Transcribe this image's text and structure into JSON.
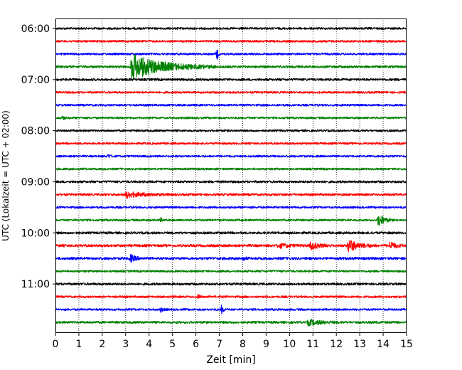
{
  "chart_data": {
    "type": "line",
    "title": "",
    "xlabel": "Zeit  [min]",
    "ylabel": "UTC (Lokalzeit = UTC + 02:00)",
    "xlim": [
      0,
      15
    ],
    "xticks": [
      0,
      1,
      2,
      3,
      4,
      5,
      6,
      7,
      8,
      9,
      10,
      11,
      12,
      13,
      14,
      15
    ],
    "ytick_labels": [
      "06:00",
      "07:00",
      "08:00",
      "09:00",
      "10:00",
      "11:00"
    ],
    "grid": "vertical dotted",
    "trace_interval_min": 15,
    "color_cycle": [
      "#000000",
      "#ff0000",
      "#0000ff",
      "#008000"
    ],
    "traces": [
      {
        "start": "06:00",
        "noise": 0.9,
        "events": []
      },
      {
        "start": "06:15",
        "noise": 0.9,
        "events": []
      },
      {
        "start": "06:30",
        "noise": 0.9,
        "events": [
          {
            "t": 6.9,
            "amp": 11,
            "dur": 0.12
          }
        ]
      },
      {
        "start": "06:45",
        "noise": 1.0,
        "events": [
          {
            "t": 3.25,
            "amp": 18,
            "dur": 3.6
          }
        ]
      },
      {
        "start": "07:00",
        "noise": 1.0,
        "events": []
      },
      {
        "start": "07:15",
        "noise": 0.9,
        "events": []
      },
      {
        "start": "07:30",
        "noise": 0.9,
        "events": []
      },
      {
        "start": "07:45",
        "noise": 0.9,
        "events": [
          {
            "t": 0.3,
            "amp": 3,
            "dur": 0.2
          }
        ]
      },
      {
        "start": "08:00",
        "noise": 0.9,
        "events": []
      },
      {
        "start": "08:15",
        "noise": 0.9,
        "events": []
      },
      {
        "start": "08:30",
        "noise": 0.9,
        "events": [
          {
            "t": 2.25,
            "amp": 3,
            "dur": 0.2
          }
        ]
      },
      {
        "start": "08:45",
        "noise": 0.9,
        "events": []
      },
      {
        "start": "09:00",
        "noise": 1.0,
        "events": []
      },
      {
        "start": "09:15",
        "noise": 1.0,
        "events": [
          {
            "t": 3.0,
            "amp": 4,
            "dur": 2.0
          }
        ]
      },
      {
        "start": "09:30",
        "noise": 0.9,
        "events": []
      },
      {
        "start": "09:45",
        "noise": 0.9,
        "events": [
          {
            "t": 13.8,
            "amp": 10,
            "dur": 0.6
          },
          {
            "t": 4.5,
            "amp": 2.5,
            "dur": 0.2
          }
        ]
      },
      {
        "start": "10:00",
        "noise": 1.0,
        "events": []
      },
      {
        "start": "10:15",
        "noise": 1.1,
        "events": [
          {
            "t": 9.5,
            "amp": 3,
            "dur": 1.2
          },
          {
            "t": 10.9,
            "amp": 5,
            "dur": 1.0
          },
          {
            "t": 12.5,
            "amp": 9,
            "dur": 1.2
          },
          {
            "t": 14.3,
            "amp": 6,
            "dur": 0.6
          }
        ]
      },
      {
        "start": "10:30",
        "noise": 1.1,
        "events": [
          {
            "t": 3.2,
            "amp": 5,
            "dur": 0.6
          },
          {
            "t": 8.0,
            "amp": 3,
            "dur": 0.3
          }
        ]
      },
      {
        "start": "10:45",
        "noise": 0.9,
        "events": []
      },
      {
        "start": "11:00",
        "noise": 1.0,
        "events": []
      },
      {
        "start": "11:15",
        "noise": 0.9,
        "events": [
          {
            "t": 6.1,
            "amp": 3,
            "dur": 0.2
          }
        ]
      },
      {
        "start": "11:30",
        "noise": 0.9,
        "events": [
          {
            "t": 4.5,
            "amp": 3,
            "dur": 0.3
          },
          {
            "t": 7.1,
            "amp": 6,
            "dur": 0.2
          }
        ]
      },
      {
        "start": "11:45",
        "noise": 1.0,
        "events": [
          {
            "t": 10.8,
            "amp": 4,
            "dur": 1.5
          }
        ]
      }
    ]
  }
}
